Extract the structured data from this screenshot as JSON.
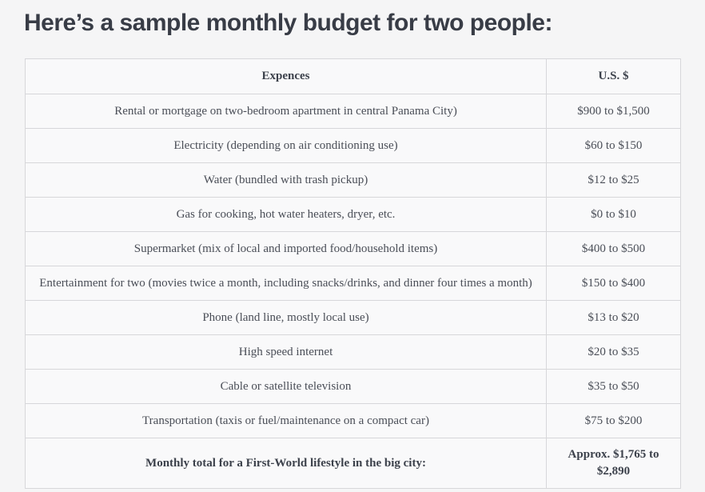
{
  "page": {
    "title": "Here’s a sample monthly budget for two people:"
  },
  "table": {
    "headers": [
      "Expences",
      "U.S. $"
    ],
    "rows": [
      {
        "expense": "Rental or mortgage on two-bedroom apartment in central Panama City)",
        "amount": "$900 to $1,500"
      },
      {
        "expense": "Electricity (depending on air conditioning use)",
        "amount": "$60 to $150"
      },
      {
        "expense": "Water (bundled with trash pickup)",
        "amount": "$12 to $25"
      },
      {
        "expense": "Gas for cooking, hot water heaters, dryer, etc.",
        "amount": "$0 to $10"
      },
      {
        "expense": "Supermarket (mix of local and imported food/household items)",
        "amount": "$400 to $500"
      },
      {
        "expense": "Entertainment for two (movies twice a month, including snacks/drinks, and dinner four times a month)",
        "amount": "$150 to $400"
      },
      {
        "expense": "Phone (land line, mostly local use)",
        "amount": "$13 to $20"
      },
      {
        "expense": "High speed internet",
        "amount": "$20 to $35"
      },
      {
        "expense": "Cable or satellite television",
        "amount": "$35 to $50"
      },
      {
        "expense": "Transportation (taxis or fuel/maintenance on a compact car)",
        "amount": "$75 to $200"
      }
    ],
    "total_row": {
      "label": "Monthly total for a First-World lifestyle in the big city:",
      "amount": "Approx. $1,765 to $2,890"
    }
  },
  "colors": {
    "page_background": "#f5f5f6",
    "cell_background": "#f9f9fa",
    "border": "#d7d7da",
    "heading_text": "#383c46",
    "body_text": "#4a4e57"
  }
}
